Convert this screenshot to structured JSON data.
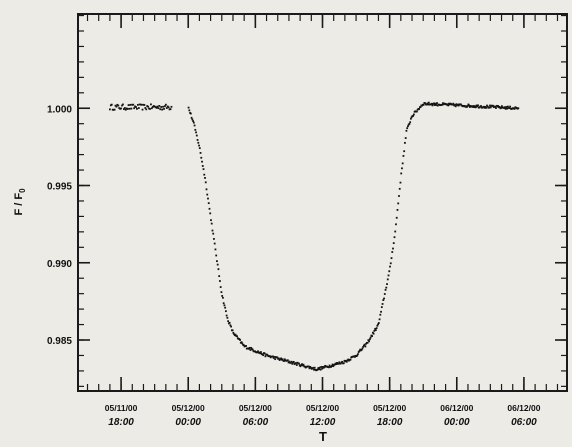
{
  "chart_data": {
    "type": "scatter",
    "title": "",
    "xlabel": "T",
    "ylabel": "F / F",
    "ylabel_sub": "0",
    "ylim": [
      0.9817,
      1.0061
    ],
    "xlim": [
      "2000-11-05T14:09",
      "2000-12-06T09:51"
    ],
    "grid": false,
    "marker_color": "#151515",
    "axis_color": "#1a1a1a",
    "y_ticks": [
      {
        "value": 1.0,
        "label": "1.000"
      },
      {
        "value": 0.995,
        "label": "0.995"
      },
      {
        "value": 0.99,
        "label": "0.990"
      },
      {
        "value": 0.985,
        "label": "0.985"
      }
    ],
    "x_ticks": [
      {
        "time": "2000-11-05T18:00",
        "date": "05/11/00",
        "clock": "18:00"
      },
      {
        "time": "2000-12-05T00:00",
        "date": "05/12/00",
        "clock": "00:00"
      },
      {
        "time": "2000-12-05T06:00",
        "date": "05/12/00",
        "clock": "06:00"
      },
      {
        "time": "2000-12-05T12:00",
        "date": "05/12/00",
        "clock": "12:00"
      },
      {
        "time": "2000-12-05T18:00",
        "date": "05/12/00",
        "clock": "18:00"
      },
      {
        "time": "2000-12-06T00:00",
        "date": "06/12/00",
        "clock": "00:00"
      },
      {
        "time": "2000-12-06T06:00",
        "date": "06/12/00",
        "clock": "06:00"
      }
    ],
    "series": [
      {
        "x_start": "2000-11-05T17:00",
        "x_end": "2000-11-05T22:30",
        "sampling_minutes": 5,
        "points": [
          [
            1.0,
            1.0003
          ]
        ]
      },
      {
        "x_start": "2000-12-04T23:30",
        "x_end": "2000-12-06T05:30",
        "sampling_minutes": 4,
        "profile": [
          [
            "2000-12-04T23:30",
            1.0003
          ],
          [
            "2000-12-05T00:00",
            1.0001
          ],
          [
            "2000-12-05T00:30",
            0.999
          ],
          [
            "2000-12-05T01:00",
            0.9975
          ],
          [
            "2000-12-05T01:30",
            0.9955
          ],
          [
            "2000-12-05T02:00",
            0.993
          ],
          [
            "2000-12-05T02:30",
            0.9905
          ],
          [
            "2000-12-05T03:00",
            0.988
          ],
          [
            "2000-12-05T03:30",
            0.9864
          ],
          [
            "2000-12-05T04:00",
            0.9855
          ],
          [
            "2000-12-05T05:00",
            0.9846
          ],
          [
            "2000-12-05T06:00",
            0.9843
          ],
          [
            "2000-12-05T07:00",
            0.984
          ],
          [
            "2000-12-05T08:00",
            0.9838
          ],
          [
            "2000-12-05T09:00",
            0.9836
          ],
          [
            "2000-12-05T10:00",
            0.9834
          ],
          [
            "2000-12-05T11:00",
            0.9832
          ],
          [
            "2000-12-05T11:30",
            0.9831
          ],
          [
            "2000-12-05T12:00",
            0.9832
          ],
          [
            "2000-12-05T13:00",
            0.9834
          ],
          [
            "2000-12-05T14:00",
            0.9836
          ],
          [
            "2000-12-05T15:00",
            0.984
          ],
          [
            "2000-12-05T16:00",
            0.9848
          ],
          [
            "2000-12-05T17:00",
            0.986
          ],
          [
            "2000-12-05T18:00",
            0.9895
          ],
          [
            "2000-12-05T18:30",
            0.992
          ],
          [
            "2000-12-05T19:00",
            0.9955
          ],
          [
            "2000-12-05T19:30",
            0.9985
          ],
          [
            "2000-12-05T20:00",
            0.9995
          ],
          [
            "2000-12-05T21:00",
            1.0003
          ],
          [
            "2000-12-06T00:00",
            1.0002
          ],
          [
            "2000-12-06T05:30",
            1.0
          ]
        ]
      }
    ]
  }
}
